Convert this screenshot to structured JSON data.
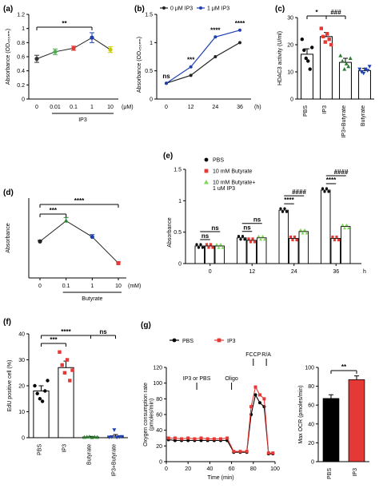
{
  "chart_data": [
    {
      "id": "a",
      "type": "line",
      "panel_label": "(a)",
      "ylabel": "Absorbance (OD₄₅₀ₙₘ)",
      "categories": [
        "0",
        "0.01",
        "0.1",
        "1",
        "10"
      ],
      "unit_label": "(μM)",
      "bracket_label": "IP3",
      "ylim": [
        0,
        1.2
      ],
      "yticks": [
        0,
        0.2,
        0.4,
        0.6,
        0.8,
        1.0,
        1.2
      ],
      "values": [
        0.57,
        0.67,
        0.72,
        0.87,
        0.7
      ],
      "errors": [
        0.05,
        0.04,
        0.03,
        0.07,
        0.04
      ],
      "point_colors": [
        "#333333",
        "#4caf50",
        "#e53935",
        "#1e40af",
        "#c8c800"
      ],
      "annotations": [
        {
          "from": 0,
          "to": 3,
          "label": "**"
        }
      ]
    },
    {
      "id": "b",
      "type": "line",
      "panel_label": "(b)",
      "ylabel": "Absorbance (OD₄₅₀ₙₘ)",
      "x": [
        0,
        12,
        24,
        36
      ],
      "xtick_labels": [
        "0",
        "12",
        "24",
        "36"
      ],
      "unit_label": "(h)",
      "ylim": [
        0,
        1.5
      ],
      "yticks": [
        0,
        0.5,
        1.0,
        1.5
      ],
      "series": [
        {
          "name": "0 μM IP3",
          "color": "#222222",
          "values": [
            0.28,
            0.42,
            0.75,
            1.0
          ]
        },
        {
          "name": "1 μM IP3",
          "color": "#1e40af",
          "values": [
            0.28,
            0.57,
            1.1,
            1.22
          ]
        }
      ],
      "annotations": [
        {
          "x": 0,
          "label": "ns"
        },
        {
          "x": 12,
          "label": "***"
        },
        {
          "x": 24,
          "label": "****"
        },
        {
          "x": 36,
          "label": "****"
        }
      ]
    },
    {
      "id": "c",
      "type": "bar",
      "panel_label": "(c)",
      "ylabel": "HDAC3 activity (U/ml)",
      "categories": [
        "PBS",
        "IP3",
        "IP3+Butyrate",
        "Butyrate"
      ],
      "ylim": [
        0,
        30
      ],
      "yticks": [
        0,
        10,
        20,
        30
      ],
      "values": [
        16.5,
        23,
        13.5,
        10.5
      ],
      "errors": [
        2,
        1.5,
        1.5,
        0.8
      ],
      "point_colors": [
        "#000000",
        "#e53935",
        "#2e7d32",
        "#1e40af"
      ],
      "points": [
        [
          22,
          18,
          15,
          14,
          11,
          19
        ],
        [
          26,
          23,
          21,
          24,
          22,
          20
        ],
        [
          16,
          14,
          11,
          13,
          12,
          15
        ],
        [
          11,
          10,
          9.5,
          11,
          10.5,
          12
        ]
      ],
      "annotations": [
        {
          "from": 0,
          "to": 1,
          "label": "*"
        },
        {
          "from": 1,
          "to": 2,
          "label": "###"
        }
      ]
    },
    {
      "id": "d",
      "type": "line",
      "panel_label": "(d)",
      "ylabel": "Absorbance",
      "categories": [
        "0",
        "0.1",
        "1",
        "10"
      ],
      "unit_label": "(mM)",
      "bracket_label": "Butyrate",
      "ylim": [
        0.2,
        0.9
      ],
      "values": [
        0.52,
        0.7,
        0.56,
        0.33
      ],
      "errors": [
        0.01,
        0.03,
        0.02,
        0.01
      ],
      "point_colors": [
        "#222222",
        "#2e7d32",
        "#1e40af",
        "#e53935"
      ],
      "annotations": [
        {
          "from": 0,
          "to": 1,
          "label": "***"
        },
        {
          "from": 0,
          "to": 3,
          "label": "****"
        }
      ]
    },
    {
      "id": "e",
      "type": "bar",
      "panel_label": "(e)",
      "ylabel": "Absorbance",
      "categories": [
        "0",
        "12",
        "24",
        "36"
      ],
      "unit_label": "h",
      "ylim": [
        0,
        1.5
      ],
      "yticks": [
        0,
        0.5,
        1.0,
        1.5
      ],
      "series": [
        {
          "name": "PBS",
          "color": "#000000",
          "values": [
            0.28,
            0.41,
            0.85,
            1.17
          ]
        },
        {
          "name": "10 mM Butyrate",
          "color": "#e53935",
          "values": [
            0.28,
            0.37,
            0.4,
            0.4
          ]
        },
        {
          "name": "10 mM Butyrate+\n1 uM IP3",
          "color": "#7ed957",
          "values": [
            0.28,
            0.41,
            0.51,
            0.59
          ]
        }
      ],
      "annotations": [
        {
          "x": "0",
          "labels": [
            "ns",
            "ns"
          ]
        },
        {
          "x": "12",
          "labels": [
            "ns",
            "ns"
          ]
        },
        {
          "x": "24",
          "labels": [
            "****",
            "####"
          ]
        },
        {
          "x": "36",
          "labels": [
            "****",
            "####"
          ]
        }
      ]
    },
    {
      "id": "f",
      "type": "bar",
      "panel_label": "(f)",
      "ylabel": "EdU positive cell (%)",
      "categories": [
        "PBS",
        "IP3",
        "Butyrate",
        "IP3+Butyrate"
      ],
      "ylim": [
        0,
        40
      ],
      "yticks": [
        0,
        10,
        20,
        30,
        40
      ],
      "values": [
        18,
        27,
        0.3,
        0.6
      ],
      "errors": [
        2,
        2.5,
        0.2,
        0.6
      ],
      "point_colors": [
        "#000000",
        "#e53935",
        "#2e7d32",
        "#1e40af"
      ],
      "points": [
        [
          20,
          17,
          15,
          14,
          18,
          22
        ],
        [
          33,
          28,
          25,
          30,
          22,
          26
        ],
        [
          0.2,
          0.3,
          0.4,
          0.1,
          0.3,
          0.2
        ],
        [
          0.2,
          0.3,
          3,
          0.1,
          0.3,
          0.4
        ]
      ],
      "annotations": [
        {
          "from": 0,
          "to": 1,
          "label": "***"
        },
        {
          "from": 0,
          "to": 2,
          "label": "****"
        },
        {
          "from": 2,
          "to": 3,
          "label": "ns"
        }
      ]
    },
    {
      "id": "g1",
      "type": "line",
      "panel_label": "(g)",
      "ylabel": "Oxygen consumption rate\n(pmoles/min)",
      "xlabel": "Time (min)",
      "xlim": [
        0,
        100
      ],
      "xticks": [
        0,
        20,
        40,
        60,
        80,
        100
      ],
      "ylim": [
        0,
        120
      ],
      "yticks": [
        0,
        20,
        40,
        60,
        80,
        100,
        120
      ],
      "series": [
        {
          "name": "PBS",
          "color": "#000000",
          "x": [
            2,
            8,
            14,
            20,
            26,
            32,
            38,
            44,
            50,
            56,
            62,
            68,
            74,
            78,
            82,
            86,
            90,
            94,
            98
          ],
          "values": [
            28,
            27,
            27,
            27,
            27,
            27,
            27,
            27,
            27,
            27,
            12,
            12,
            12,
            60,
            85,
            75,
            70,
            10,
            10
          ]
        },
        {
          "name": "IP3",
          "color": "#e53935",
          "x": [
            2,
            8,
            14,
            20,
            26,
            32,
            38,
            44,
            50,
            56,
            62,
            68,
            74,
            78,
            82,
            86,
            90,
            94,
            98
          ],
          "values": [
            30,
            30,
            29,
            30,
            29,
            30,
            29,
            29,
            29,
            30,
            13,
            13,
            13,
            70,
            95,
            85,
            80,
            11,
            11
          ]
        }
      ],
      "annotations": [
        {
          "label": "IP3 or PBS",
          "x": 28
        },
        {
          "label": "Oligo",
          "x": 60
        },
        {
          "label": "FCCP",
          "x": 80
        },
        {
          "label": "R/A",
          "x": 92
        }
      ]
    },
    {
      "id": "g2",
      "type": "bar",
      "panel_label": "",
      "ylabel": "Max OCR (pmoles/min)",
      "categories": [
        "PBS",
        "IP3"
      ],
      "ylim": [
        0,
        100
      ],
      "yticks": [
        0,
        20,
        40,
        60,
        80,
        100
      ],
      "values": [
        67,
        87
      ],
      "errors": [
        4,
        4
      ],
      "bar_colors": [
        "#000000",
        "#e53935"
      ],
      "annotations": [
        {
          "from": 0,
          "to": 1,
          "label": "**"
        }
      ]
    }
  ]
}
